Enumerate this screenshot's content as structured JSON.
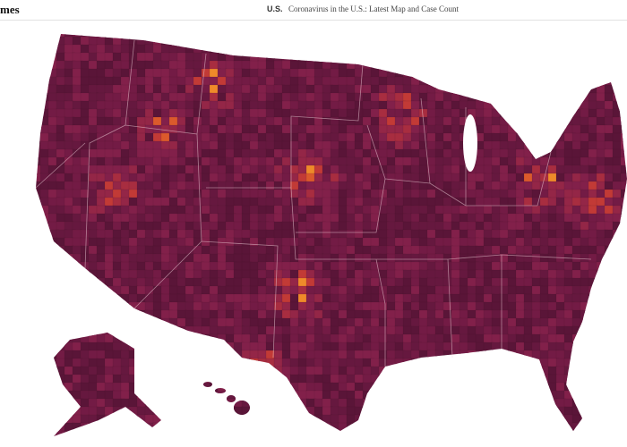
{
  "header": {
    "logo": "mes",
    "section": "U.S.",
    "title": "Coronavirus in the U.S.: Latest Map and Case Count"
  }
}
